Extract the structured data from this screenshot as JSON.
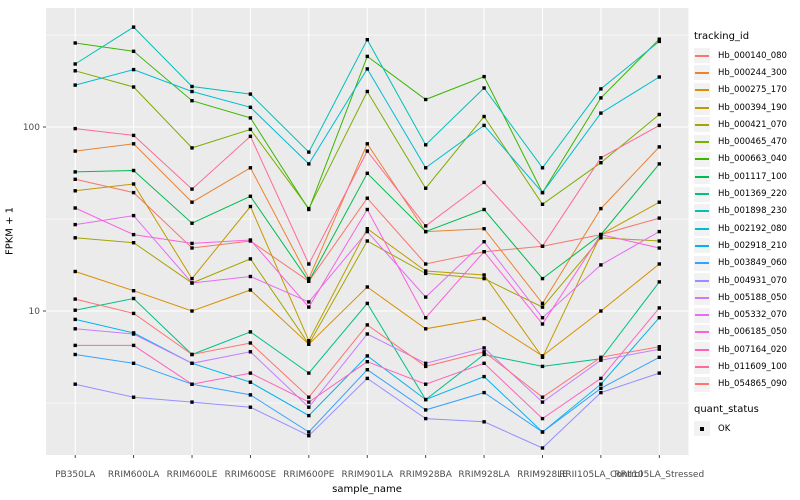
{
  "figure": {
    "background": "#FFFFFF",
    "panel_background": "#EBEBEB",
    "gridline_color": "#FFFFFF",
    "axis_text_color": "#4D4D4D",
    "tick_mark_color": "#333333",
    "point_color": "#000000"
  },
  "legend": {
    "tracking_title": "tracking_id",
    "quant_title": "quant_status",
    "quant_items": [
      {
        "label": "OK",
        "marker": "black-square"
      }
    ],
    "key_background": "#F2F2F2"
  },
  "chart_data": {
    "type": "line",
    "title": "",
    "xlabel": "sample_name",
    "ylabel": "FPKM + 1",
    "y_scale": "log10",
    "ylim": [
      1.7,
      440
    ],
    "grid": "on",
    "legend_position": "right",
    "point_marker": "filled-black-square",
    "y_axis": {
      "ticks": [
        {
          "label": "100",
          "value": 100
        },
        {
          "label": "10",
          "value": 10
        }
      ],
      "minor_gridlines": [
        316,
        31.6,
        3.16
      ]
    },
    "categories": [
      "PB350LA",
      "RRIM600LA",
      "RRIM600LE",
      "RRIM600SE",
      "RRIM600PE",
      "RRIM901LA",
      "RRIM928BA",
      "RRIM928LA",
      "RRIM928LE",
      "RRII105LA_Control",
      "RRII105LA_Stressed"
    ],
    "series": [
      {
        "name": "Hb_000140_080",
        "color": "#F8766D",
        "values": [
          52,
          44,
          22,
          24,
          14.5,
          41,
          18,
          21,
          22.5,
          26,
          32
        ]
      },
      {
        "name": "Hb_000244_300",
        "color": "#EA8331",
        "values": [
          74,
          81,
          39,
          60,
          15,
          81,
          27,
          28,
          11,
          36,
          78
        ]
      },
      {
        "name": "Hb_000275_170",
        "color": "#D89000",
        "values": [
          16.4,
          12.9,
          10,
          13,
          6.6,
          13.5,
          8,
          9.1,
          5.7,
          10,
          18
        ]
      },
      {
        "name": "Hb_000394_190",
        "color": "#C09B00",
        "values": [
          45,
          49,
          15,
          37,
          6.9,
          28,
          16.5,
          15.7,
          5.6,
          26,
          39
        ]
      },
      {
        "name": "Hb_000421_070",
        "color": "#A3A500",
        "values": [
          25,
          23.5,
          14.2,
          19.2,
          6.6,
          24,
          16,
          15,
          10.5,
          25,
          24
        ]
      },
      {
        "name": "Hb_000465_470",
        "color": "#7CAE00",
        "values": [
          202,
          165,
          77,
          97,
          36,
          156,
          46.5,
          114,
          38,
          64,
          117
        ]
      },
      {
        "name": "Hb_000663_040",
        "color": "#39B600",
        "values": [
          286,
          258,
          139,
          112,
          35.6,
          242,
          141,
          188,
          44,
          144,
          300
        ]
      },
      {
        "name": "Hb_001117_100",
        "color": "#00BB4E",
        "values": [
          57,
          58,
          30,
          42,
          14.5,
          56,
          27,
          35.6,
          15,
          26,
          63
        ]
      },
      {
        "name": "Hb_001369_220",
        "color": "#00C087",
        "values": [
          10.1,
          11.7,
          5.8,
          7.7,
          4.6,
          11,
          3.3,
          5.8,
          5,
          5.5,
          14.4
        ]
      },
      {
        "name": "Hb_001898_230",
        "color": "#00C0B8",
        "values": [
          220,
          349,
          166,
          151,
          73,
          298,
          80,
          163,
          60,
          161,
          292
        ]
      },
      {
        "name": "Hb_002192_080",
        "color": "#00BDD0",
        "values": [
          169,
          205,
          156,
          128,
          63,
          207,
          60,
          102,
          44,
          119,
          187
        ]
      },
      {
        "name": "Hb_002918_210",
        "color": "#00B4EF",
        "values": [
          9,
          7.6,
          5.2,
          4.1,
          2.7,
          5.7,
          3.3,
          4.4,
          2.2,
          4,
          9.2
        ]
      },
      {
        "name": "Hb_003849_060",
        "color": "#35A2FF",
        "values": [
          5.8,
          5.2,
          4,
          3.5,
          2.2,
          4.8,
          2.9,
          3.6,
          2.2,
          3.8,
          5.6
        ]
      },
      {
        "name": "Hb_004931_070",
        "color": "#9590FF",
        "values": [
          4,
          3.4,
          3.2,
          3,
          2.1,
          4.3,
          2.6,
          2.5,
          1.8,
          3.6,
          4.6
        ]
      },
      {
        "name": "Hb_005188_050",
        "color": "#C77CFF",
        "values": [
          8,
          7.5,
          5.2,
          6,
          3,
          7.5,
          5.2,
          6.3,
          3.2,
          5.4,
          6.2
        ]
      },
      {
        "name": "Hb_005332_070",
        "color": "#E76BF3",
        "values": [
          29.5,
          33,
          14.2,
          15.4,
          11.2,
          27,
          11.9,
          23.8,
          9.2,
          17.8,
          27
        ]
      },
      {
        "name": "Hb_006185_050",
        "color": "#FA62DB",
        "values": [
          36.3,
          26,
          23.3,
          24.3,
          10.5,
          35.6,
          9.2,
          21,
          8.5,
          26,
          22
        ]
      },
      {
        "name": "Hb_007164_020",
        "color": "#FF62BC",
        "values": [
          6.5,
          6.5,
          4,
          4.6,
          3.2,
          5.3,
          4,
          5.2,
          2.6,
          4.3,
          10.4
        ]
      },
      {
        "name": "Hb_011609_100",
        "color": "#FF6A98",
        "values": [
          98,
          90,
          46,
          89,
          18,
          74,
          29,
          50,
          22.5,
          68,
          102
        ]
      },
      {
        "name": "Hb_054865_090",
        "color": "#FF7370",
        "values": [
          11.6,
          9.7,
          5.8,
          6.7,
          3.4,
          8.4,
          5,
          6,
          3.4,
          5.6,
          6.4
        ]
      }
    ]
  }
}
